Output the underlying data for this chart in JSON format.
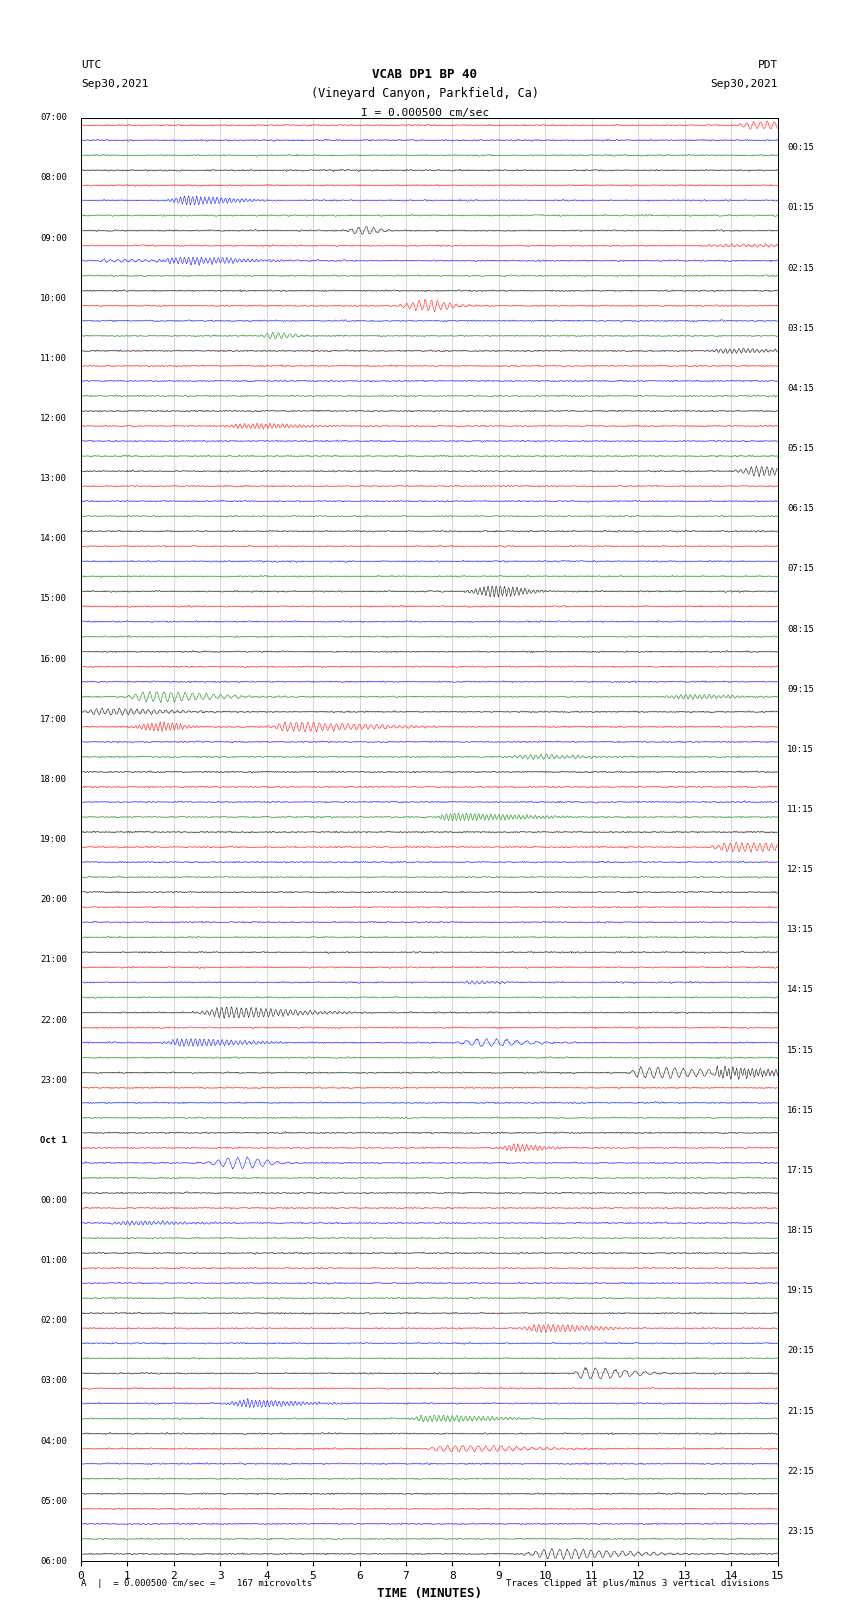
{
  "title_line1": "VCAB DP1 BP 40",
  "title_line2": "(Vineyard Canyon, Parkfield, Ca)",
  "scale_text": "I = 0.000500 cm/sec",
  "utc_label": "UTC",
  "utc_date": "Sep30,2021",
  "pdt_label": "PDT",
  "pdt_date": "Sep30,2021",
  "footer_left": "A  |  = 0.000500 cm/sec =    167 microvolts",
  "footer_right": "Traces clipped at plus/minus 3 vertical divisions",
  "xlabel": "TIME (MINUTES)",
  "left_times": [
    "07:00",
    "08:00",
    "09:00",
    "10:00",
    "11:00",
    "12:00",
    "13:00",
    "14:00",
    "15:00",
    "16:00",
    "17:00",
    "18:00",
    "19:00",
    "20:00",
    "21:00",
    "22:00",
    "23:00",
    "Oct 1",
    "00:00",
    "01:00",
    "02:00",
    "03:00",
    "04:00",
    "05:00",
    "06:00"
  ],
  "right_times": [
    "00:15",
    "01:15",
    "02:15",
    "03:15",
    "04:15",
    "05:15",
    "06:15",
    "07:15",
    "08:15",
    "09:15",
    "10:15",
    "11:15",
    "12:15",
    "13:15",
    "14:15",
    "15:15",
    "16:15",
    "17:15",
    "18:15",
    "19:15",
    "20:15",
    "21:15",
    "22:15",
    "23:15"
  ],
  "n_rows": 96,
  "colors_cycle": [
    "red",
    "blue",
    "green",
    "black"
  ],
  "x_min": 0,
  "x_max": 15,
  "x_ticks": [
    0,
    1,
    2,
    3,
    4,
    5,
    6,
    7,
    8,
    9,
    10,
    11,
    12,
    13,
    14,
    15
  ],
  "background_color": "white",
  "seed": 42
}
